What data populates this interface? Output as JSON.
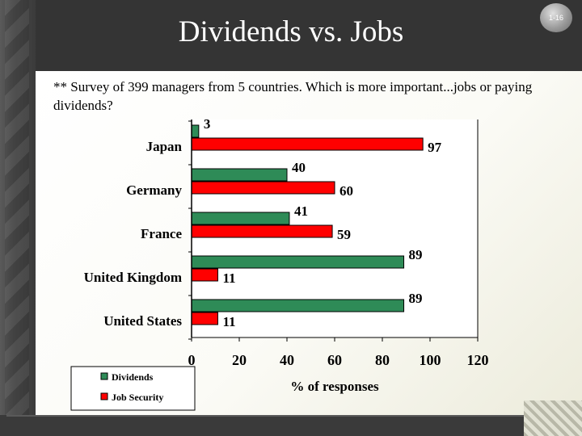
{
  "slide": {
    "title": "Dividends vs. Jobs",
    "page_badge": "1-16",
    "question": "** Survey of 399 managers from 5 countries. Which is more important...jobs or paying dividends?"
  },
  "colors": {
    "dividends": "#2e8b57",
    "jobs": "#ff0000"
  },
  "chart_data": {
    "type": "bar",
    "orientation": "horizontal",
    "categories": [
      "Japan",
      "Germany",
      "France",
      "United Kingdom",
      "United States"
    ],
    "series": [
      {
        "name": "Dividends",
        "values": [
          3,
          40,
          41,
          89,
          89
        ]
      },
      {
        "name": "Job Security",
        "values": [
          97,
          60,
          59,
          11,
          11
        ]
      }
    ],
    "xlabel": "% of responses",
    "xlim": [
      0,
      120
    ],
    "xticks": [
      "0",
      "20",
      "40",
      "60",
      "80",
      "100",
      "120"
    ],
    "grid": false,
    "legend_position": "bottom-left"
  }
}
